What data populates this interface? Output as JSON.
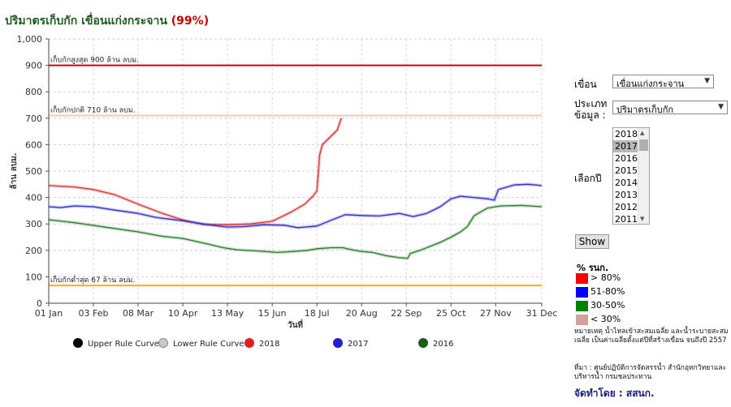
{
  "title": {
    "text": "ปริมาตรเก็บกัก เขื่อนแก่งกระจาน",
    "percent": "(99%)"
  },
  "controls": {
    "dam_label": "เขื่อน",
    "dam_value": "เขื่อนแก่งกระจาน",
    "type_label_1": "ประเภท",
    "type_label_2": "ข้อมูล :",
    "type_value": "ปริมาตรเก็บกัก",
    "year_label": "เลือกปี",
    "years": [
      "2018",
      "2017",
      "2016",
      "2015",
      "2014",
      "2013",
      "2012",
      "2011"
    ],
    "selected_year": "2017",
    "show_button": "Show"
  },
  "legend_pct": {
    "title": "% รนก.",
    "items": [
      {
        "label": "> 80%",
        "color": "#ff0000"
      },
      {
        "label": "51-80%",
        "color": "#0000ff"
      },
      {
        "label": "30-50%",
        "color": "#008000"
      },
      {
        "label": "< 30%",
        "color": "#d4a09a"
      }
    ]
  },
  "notes": {
    "note": "หมายเหตุ  น้ำไหลเข้าสะสมเฉลี่ย และน้ำระบายสะสมเฉลี่ย เป็นค่าเฉลี่ยตั้งแต่ปีที่สร้างเขื่อน จนถึงปี 2557",
    "source": "ที่มา : ศูนย์ปฏิบัติการจัดสรรน้ำ สำนักอุทกวิทยาและบริหารน้ำ กรมชลประทาน",
    "maker": "จัดทำโดย : สสนก."
  },
  "chart_data": {
    "type": "line",
    "ylabel": "ล้าน ลบม.",
    "xlabel": "วันที่",
    "ylim": [
      0,
      1000
    ],
    "yticks": [
      "0",
      "100",
      "200",
      "300",
      "400",
      "500",
      "600",
      "700",
      "800",
      "900",
      "1,000"
    ],
    "xticks": [
      "01 Jan",
      "03 Feb",
      "08 Mar",
      "10 Apr",
      "13 May",
      "15 Jun",
      "18 Jul",
      "20 Aug",
      "22 Sep",
      "25 Oct",
      "27 Nov",
      "31 Dec"
    ],
    "xtick_days": [
      1,
      34,
      67,
      100,
      133,
      166,
      199,
      232,
      265,
      298,
      331,
      365
    ],
    "grid": true,
    "reference_lines": [
      {
        "label": "เก็บกักสูงสุด 900 ล้าน ลบม.",
        "value": 900,
        "color": "#d00000"
      },
      {
        "label": "เก็บกักปกติ 710 ล้าน ลบม.",
        "value": 710,
        "color": "#f4c8b4"
      },
      {
        "label": "เก็บกักต่ำสุด 67 ล้าน ลบม.",
        "value": 67,
        "color": "#e8b800"
      }
    ],
    "legend": [
      {
        "name": "Upper Rule Curve",
        "color": "#000000"
      },
      {
        "name": "Lower Rule Curve",
        "color": "#c8c8c8"
      },
      {
        "name": "2018",
        "color": "#e02020"
      },
      {
        "name": "2017",
        "color": "#2020cc"
      },
      {
        "name": "2016",
        "color": "#1a5e1a"
      }
    ],
    "series": [
      {
        "name": "2018",
        "color": "#e03030",
        "points": [
          [
            1,
            445
          ],
          [
            20,
            440
          ],
          [
            34,
            430
          ],
          [
            50,
            410
          ],
          [
            67,
            375
          ],
          [
            85,
            340
          ],
          [
            100,
            315
          ],
          [
            115,
            298
          ],
          [
            133,
            297
          ],
          [
            150,
            300
          ],
          [
            166,
            310
          ],
          [
            180,
            345
          ],
          [
            190,
            375
          ],
          [
            196,
            405
          ],
          [
            199,
            425
          ],
          [
            201,
            560
          ],
          [
            203,
            600
          ],
          [
            207,
            620
          ],
          [
            211,
            640
          ],
          [
            214,
            655
          ],
          [
            217,
            700
          ]
        ]
      },
      {
        "name": "2017",
        "color": "#3030d0",
        "points": [
          [
            1,
            365
          ],
          [
            10,
            362
          ],
          [
            20,
            368
          ],
          [
            34,
            365
          ],
          [
            50,
            352
          ],
          [
            67,
            340
          ],
          [
            80,
            325
          ],
          [
            100,
            312
          ],
          [
            115,
            300
          ],
          [
            125,
            293
          ],
          [
            133,
            288
          ],
          [
            145,
            290
          ],
          [
            160,
            297
          ],
          [
            175,
            295
          ],
          [
            185,
            286
          ],
          [
            199,
            292
          ],
          [
            210,
            315
          ],
          [
            220,
            335
          ],
          [
            232,
            332
          ],
          [
            245,
            330
          ],
          [
            260,
            340
          ],
          [
            270,
            328
          ],
          [
            280,
            340
          ],
          [
            290,
            365
          ],
          [
            298,
            395
          ],
          [
            305,
            405
          ],
          [
            315,
            400
          ],
          [
            325,
            395
          ],
          [
            330,
            390
          ],
          [
            333,
            430
          ],
          [
            345,
            448
          ],
          [
            355,
            450
          ],
          [
            365,
            445
          ]
        ]
      },
      {
        "name": "2016",
        "color": "#2e7d2e",
        "points": [
          [
            1,
            316
          ],
          [
            20,
            305
          ],
          [
            40,
            290
          ],
          [
            67,
            270
          ],
          [
            85,
            253
          ],
          [
            100,
            245
          ],
          [
            115,
            228
          ],
          [
            130,
            210
          ],
          [
            140,
            202
          ],
          [
            155,
            198
          ],
          [
            170,
            192
          ],
          [
            180,
            195
          ],
          [
            192,
            200
          ],
          [
            199,
            206
          ],
          [
            210,
            210
          ],
          [
            218,
            210
          ],
          [
            225,
            202
          ],
          [
            232,
            196
          ],
          [
            240,
            192
          ],
          [
            250,
            180
          ],
          [
            260,
            172
          ],
          [
            266,
            170
          ],
          [
            268,
            188
          ],
          [
            275,
            200
          ],
          [
            290,
            230
          ],
          [
            298,
            250
          ],
          [
            305,
            270
          ],
          [
            310,
            290
          ],
          [
            315,
            330
          ],
          [
            318,
            340
          ],
          [
            325,
            360
          ],
          [
            335,
            368
          ],
          [
            350,
            370
          ],
          [
            365,
            365
          ]
        ]
      }
    ]
  }
}
